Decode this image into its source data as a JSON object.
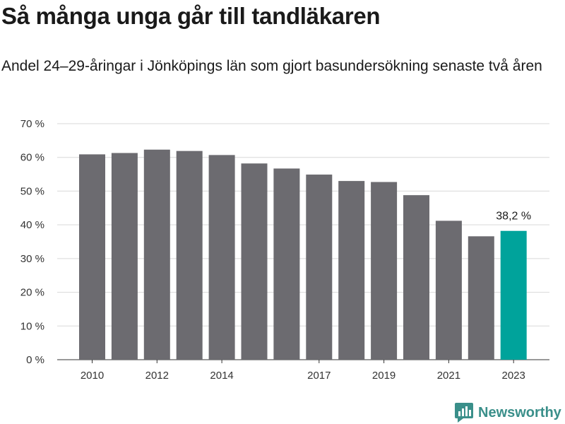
{
  "title": "Så många unga går till tandläkaren",
  "subtitle": "Andel 24–29-åringar i Jönköpings län som gjort basundersökning senaste två åren",
  "brand": {
    "name": "Newsworthy",
    "icon": "newsworthy-logo-icon",
    "color": "#3a8f8a"
  },
  "colors": {
    "bar": "#6c6b70",
    "highlight": "#00a39b",
    "grid": "#d9d9d9",
    "axis": "#333333"
  },
  "chart_data": {
    "type": "bar",
    "title": "Så många unga går till tandläkaren",
    "subtitle": "Andel 24–29-åringar i Jönköpings län som gjort basundersökning senaste två åren",
    "categories": [
      "2010",
      "2011",
      "2012",
      "2013",
      "2014",
      "2015",
      "2016",
      "2017",
      "2018",
      "2019",
      "2020",
      "2021",
      "2022",
      "2023"
    ],
    "x_tick_labels": [
      "2010",
      "",
      "2012",
      "",
      "2014",
      "",
      "",
      "2017",
      "",
      "2019",
      "",
      "2021",
      "",
      "2023"
    ],
    "values": [
      60.9,
      61.3,
      62.3,
      61.9,
      60.7,
      58.2,
      56.7,
      54.9,
      53.0,
      52.7,
      48.8,
      41.2,
      36.6,
      38.2
    ],
    "highlight_index": 13,
    "highlight_label": "38,2 %",
    "xlabel": "",
    "ylabel": "",
    "ylim": [
      0,
      70
    ],
    "y_ticks": [
      0,
      10,
      20,
      30,
      40,
      50,
      60,
      70
    ],
    "y_tick_labels": [
      "0 %",
      "10 %",
      "20 %",
      "30 %",
      "40 %",
      "50 %",
      "60 %",
      "70 %"
    ],
    "grid": true,
    "legend": "none"
  }
}
